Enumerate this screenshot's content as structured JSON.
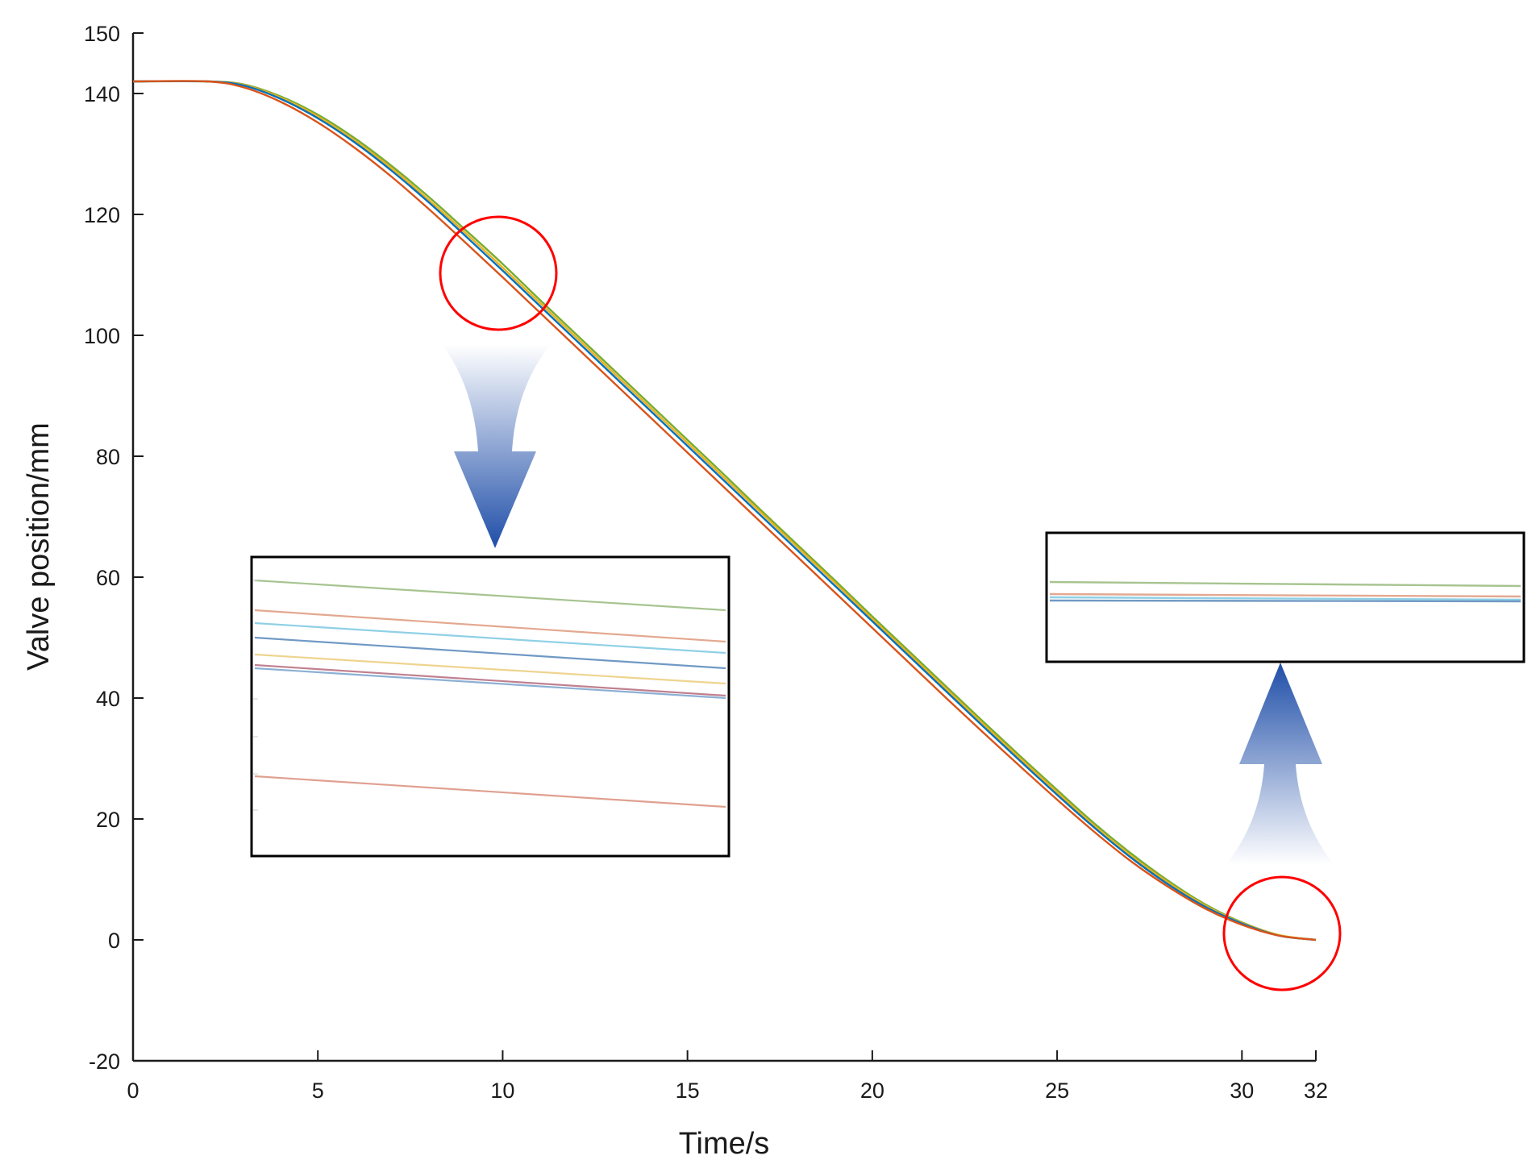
{
  "chart_data": {
    "type": "line",
    "title": "",
    "xlabel": "Time/s",
    "ylabel": "Valve position/mm",
    "xlim": [
      0,
      32
    ],
    "ylim": [
      -20,
      150
    ],
    "xticks": [
      0,
      5,
      10,
      15,
      20,
      25,
      30,
      32
    ],
    "yticks": [
      -20,
      0,
      20,
      40,
      60,
      80,
      100,
      120,
      140,
      150
    ],
    "grid": false,
    "legend": "none",
    "x": [
      0,
      2,
      3,
      4,
      5,
      6,
      7,
      8,
      9,
      10,
      11,
      12,
      13,
      14,
      15,
      16,
      17,
      18,
      19,
      20,
      21,
      22,
      23,
      24,
      25,
      26,
      27,
      28,
      29,
      30,
      31,
      32
    ],
    "series": [
      {
        "color": "#77ac30",
        "values": [
          142,
          142,
          141.5,
          139.5,
          136.5,
          132.6,
          128,
          122.9,
          117.4,
          111.8,
          105.9,
          100.1,
          94.3,
          88.5,
          82.7,
          76.9,
          71,
          65.2,
          59.4,
          53.5,
          47.7,
          41.9,
          36.1,
          30.4,
          24.8,
          19.3,
          14.3,
          9.8,
          5.9,
          2.9,
          0.8,
          0
        ]
      },
      {
        "color": "#edb120",
        "values": [
          142,
          142,
          141.4,
          139.3,
          136.2,
          132.2,
          127.6,
          122.4,
          116.9,
          111.2,
          105.4,
          99.6,
          93.8,
          88,
          82.2,
          76.4,
          70.6,
          64.8,
          59,
          53.1,
          47.3,
          41.5,
          35.7,
          30,
          24.4,
          18.9,
          13.9,
          9.5,
          5.7,
          2.8,
          0.8,
          0
        ]
      },
      {
        "color": "#0072bd",
        "values": [
          142,
          142,
          141.3,
          139.1,
          135.9,
          131.9,
          127.2,
          122,
          116.4,
          110.7,
          104.9,
          99.1,
          93.3,
          87.5,
          81.7,
          75.9,
          70.1,
          64.3,
          58.5,
          52.7,
          46.9,
          41.1,
          35.3,
          29.6,
          24,
          18.6,
          13.6,
          9.2,
          5.5,
          2.7,
          0.7,
          0
        ]
      },
      {
        "color": "#d95319",
        "values": [
          142,
          142,
          141,
          138.6,
          135.2,
          131,
          126.2,
          120.9,
          115.3,
          109.6,
          103.8,
          98,
          92.2,
          86.4,
          80.6,
          74.8,
          69,
          63.2,
          57.4,
          51.6,
          45.8,
          40,
          34.3,
          28.7,
          23.2,
          17.9,
          13,
          8.8,
          5.2,
          2.5,
          0.7,
          0
        ]
      }
    ],
    "annotations": [
      {
        "type": "highlight-circle",
        "color": "#ff0000",
        "center": [
          9.9,
          110.5
        ],
        "radius_x": 1.6
      },
      {
        "type": "highlight-circle",
        "color": "#ff0000",
        "center": [
          31.1,
          1.5
        ],
        "radius_x": 1.55
      },
      {
        "type": "zoom-inset",
        "region": "upper-left circle",
        "lines": [
          "#a7c490",
          "#e3a890",
          "#8fd0e6",
          "#7099c4",
          "#eed48f",
          "#c08090",
          "#8cb0d4",
          "#e0a090"
        ]
      },
      {
        "type": "zoom-inset",
        "region": "lower-right circle",
        "lines": [
          "#a7c490",
          "#e3a890",
          "#8fd0e6",
          "#7099c4"
        ]
      }
    ]
  }
}
